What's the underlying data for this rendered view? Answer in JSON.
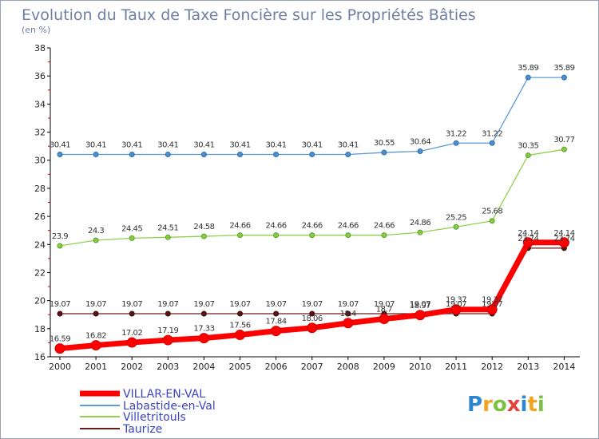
{
  "chart_data": {
    "type": "line",
    "title": "Evolution du Taux de Taxe Foncière sur les Propriétés Bâties",
    "ylabel": "(en %)",
    "xlabel": "",
    "ylim": [
      16,
      38
    ],
    "yticks": [
      16,
      18,
      20,
      22,
      24,
      26,
      28,
      30,
      32,
      34,
      36,
      38
    ],
    "x": [
      "2000",
      "2001",
      "2002",
      "2003",
      "2004",
      "2005",
      "2006",
      "2007",
      "2008",
      "2009",
      "2010",
      "2011",
      "2012",
      "2013",
      "2014"
    ],
    "series": [
      {
        "name": "VILLAR-EN-VAL",
        "color": "#ff0000",
        "values": [
          16.59,
          16.82,
          17.02,
          17.19,
          17.33,
          17.56,
          17.84,
          18.06,
          18.4,
          18.7,
          18.97,
          19.37,
          19.37,
          24.14,
          24.14
        ],
        "labels": [
          "16.59",
          "16.82",
          "17.02",
          "17.19",
          "17.33",
          "17.56",
          "17.84",
          "18.06",
          "18.4",
          "18.7",
          "18.97",
          "19.37",
          "19.37",
          "24.14",
          "24.14"
        ]
      },
      {
        "name": "Labastide-en-Val",
        "color": "#5b9bd5",
        "values": [
          30.41,
          30.41,
          30.41,
          30.41,
          30.41,
          30.41,
          30.41,
          30.41,
          30.41,
          30.55,
          30.64,
          31.22,
          31.22,
          35.89,
          35.89
        ],
        "labels": [
          "30.41",
          "30.41",
          "30.41",
          "30.41",
          "30.41",
          "30.41",
          "30.41",
          "30.41",
          "30.41",
          "30.55",
          "30.64",
          "31.22",
          "31.22",
          "35.89",
          "35.89"
        ]
      },
      {
        "name": "Villetritouls",
        "color": "#8fd14f",
        "values": [
          23.9,
          24.3,
          24.45,
          24.51,
          24.58,
          24.66,
          24.66,
          24.66,
          24.66,
          24.66,
          24.86,
          25.25,
          25.68,
          30.35,
          30.77
        ],
        "labels": [
          "23.9",
          "24.3",
          "24.45",
          "24.51",
          "24.58",
          "24.66",
          "24.66",
          "24.66",
          "24.66",
          "24.66",
          "24.86",
          "25.25",
          "25.68",
          "30.35",
          "30.77"
        ]
      },
      {
        "name": "Taurize",
        "color": "#6b1a1a",
        "values": [
          19.07,
          19.07,
          19.07,
          19.07,
          19.07,
          19.07,
          19.07,
          19.07,
          19.07,
          19.07,
          19.07,
          19.07,
          19.07,
          23.74,
          23.74
        ],
        "labels": [
          "19.07",
          "19.07",
          "19.07",
          "19.07",
          "19.07",
          "19.07",
          "19.07",
          "19.07",
          "19.07",
          "19.07",
          "19.07",
          "19.07",
          "19.07",
          "23.74",
          "23.74"
        ]
      }
    ],
    "legend": [
      "VILLAR-EN-VAL",
      "Labastide-en-Val",
      "Villetritouls",
      "Taurize"
    ],
    "grid": false
  },
  "logo": {
    "text": "Proxiti"
  }
}
